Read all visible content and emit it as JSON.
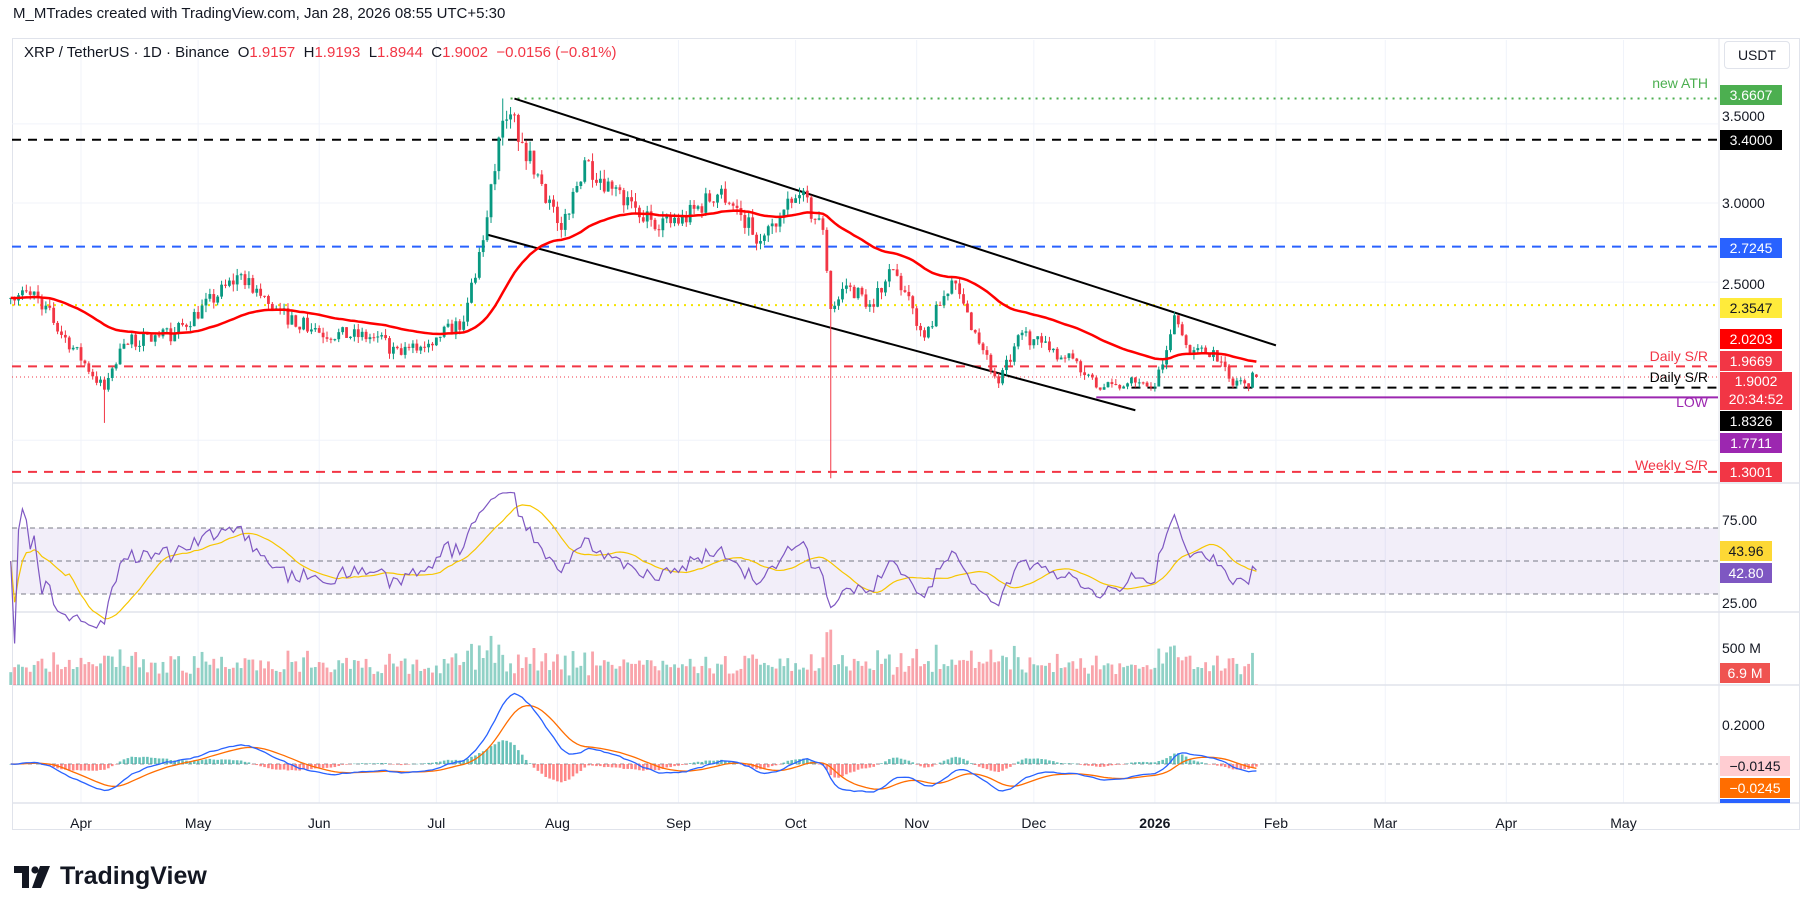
{
  "attribution": "M_MTrades created with TradingView.com, Jan 28, 2026 08:55 UTC+5:30",
  "legend": {
    "symbol": "XRP / TetherUS · 1D · Binance",
    "o_label": "O",
    "o": "1.9157",
    "h_label": "H",
    "h": "1.9193",
    "l_label": "L",
    "l": "1.8944",
    "c_label": "C",
    "c": "1.9002",
    "change": "−0.0156 (−0.81%)"
  },
  "currency_button": "USDT",
  "brand": "TradingView",
  "colors": {
    "up": "#089981",
    "down": "#f23645",
    "ma": "#ff0000",
    "rsi": "#7e57c2",
    "rsi_ma": "#f7c600",
    "macd": "#2962ff",
    "signal": "#ff6d00"
  },
  "price_axis": {
    "ticks": [
      "3.5000",
      "3.0000",
      "2.5000"
    ],
    "labels": {
      "ath": "3.6607",
      "black_top": "3.4000",
      "blue": "2.7245",
      "yellow": "2.3547",
      "ma": "2.0203",
      "daily_sr": "1.9669",
      "last": "1.9002",
      "countdown": "20:34:52",
      "daily_sr2": "1.8326",
      "low": "1.7711",
      "weekly_sr": "1.3001"
    },
    "annotations": {
      "ath": "new ATH",
      "daily_sr": "Daily S/R",
      "daily_sr2": "Daily S/R",
      "low": "LOW",
      "weekly_sr": "Weekly S/R"
    }
  },
  "rsi_axis": {
    "t75": "75.00",
    "t25": "25.00",
    "ma_value": "43.96",
    "rsi_value": "42.80"
  },
  "volume_axis": {
    "t500": "500 M",
    "value": "6.9 M"
  },
  "macd_axis": {
    "t02": "0.2000",
    "hist": "−0.0145",
    "signal": "−0.0245"
  },
  "time_axis": [
    "Apr",
    "May",
    "Jun",
    "Jul",
    "Aug",
    "Sep",
    "Oct",
    "Nov",
    "Dec",
    "2026",
    "Feb",
    "Mar",
    "Apr",
    "May"
  ],
  "chart_data": {
    "type": "candlestick",
    "title": "XRP / TetherUS · 1D · Binance",
    "start_date": "2025-03-14",
    "end_date": "2026-01-27",
    "close_keypoints": [
      [
        "2025-03-14",
        2.4
      ],
      [
        "2025-03-20",
        2.44
      ],
      [
        "2025-03-28",
        2.15
      ],
      [
        "2025-04-07",
        1.82
      ],
      [
        "2025-04-12",
        2.11
      ],
      [
        "2025-04-25",
        2.18
      ],
      [
        "2025-05-12",
        2.55
      ],
      [
        "2025-05-20",
        2.33
      ],
      [
        "2025-06-01",
        2.18
      ],
      [
        "2025-06-15",
        2.15
      ],
      [
        "2025-06-22",
        2.04
      ],
      [
        "2025-07-01",
        2.15
      ],
      [
        "2025-07-08",
        2.25
      ],
      [
        "2025-07-12",
        2.69
      ],
      [
        "2025-07-14",
        2.91
      ],
      [
        "2025-07-18",
        3.52
      ],
      [
        "2025-07-20",
        3.56
      ],
      [
        "2025-07-23",
        3.38
      ],
      [
        "2025-07-28",
        3.12
      ],
      [
        "2025-08-02",
        2.83
      ],
      [
        "2025-08-08",
        3.27
      ],
      [
        "2025-08-15",
        3.09
      ],
      [
        "2025-08-22",
        2.91
      ],
      [
        "2025-09-01",
        2.87
      ],
      [
        "2025-09-12",
        3.09
      ],
      [
        "2025-09-22",
        2.76
      ],
      [
        "2025-10-02",
        3.05
      ],
      [
        "2025-10-08",
        2.83
      ],
      [
        "2025-10-10",
        2.33
      ],
      [
        "2025-10-15",
        2.47
      ],
      [
        "2025-10-20",
        2.36
      ],
      [
        "2025-10-26",
        2.58
      ],
      [
        "2025-11-03",
        2.15
      ],
      [
        "2025-11-10",
        2.51
      ],
      [
        "2025-11-18",
        2.07
      ],
      [
        "2025-11-22",
        1.86
      ],
      [
        "2025-11-28",
        2.18
      ],
      [
        "2025-12-05",
        2.07
      ],
      [
        "2025-12-12",
        2.0
      ],
      [
        "2025-12-18",
        1.82
      ],
      [
        "2025-12-25",
        1.86
      ],
      [
        "2026-01-01",
        1.84
      ],
      [
        "2026-01-04",
        2.07
      ],
      [
        "2026-01-06",
        2.29
      ],
      [
        "2026-01-10",
        2.04
      ],
      [
        "2026-01-16",
        2.07
      ],
      [
        "2026-01-20",
        1.89
      ],
      [
        "2026-01-24",
        1.86
      ],
      [
        "2026-01-27",
        1.9002
      ]
    ],
    "extreme_wicks": [
      [
        "2025-04-07",
        1.61
      ],
      [
        "2025-10-10",
        1.26
      ],
      [
        "2025-07-18",
        3.6607
      ]
    ],
    "last_candle": {
      "o": 1.9157,
      "h": 1.9193,
      "l": 1.8944,
      "c": 1.9002
    },
    "moving_average": {
      "type": "EMA",
      "period": 50,
      "last": 2.0203
    },
    "horizontal_levels": [
      {
        "price": 3.6607,
        "style": "dotted",
        "color": "#4caf50",
        "from": "2025-07-20",
        "label": "new ATH"
      },
      {
        "price": 3.4,
        "style": "dashed",
        "color": "#000000"
      },
      {
        "price": 2.7245,
        "style": "dashed",
        "color": "#2962ff"
      },
      {
        "price": 2.3547,
        "style": "dotted",
        "color": "#f5e400"
      },
      {
        "price": 1.9669,
        "style": "dashed",
        "color": "#f23645",
        "label": "Daily S/R"
      },
      {
        "price": 1.9002,
        "style": "dotted-thin",
        "color": "#f23645"
      },
      {
        "price": 1.8326,
        "style": "dashed",
        "color": "#000000",
        "from": "2025-12-26",
        "label": "Daily S/R"
      },
      {
        "price": 1.7711,
        "style": "solid",
        "color": "#9c27b0",
        "from": "2025-12-17",
        "label": "LOW"
      },
      {
        "price": 1.3001,
        "style": "dashed",
        "color": "#f23645",
        "label": "Weekly S/R"
      }
    ],
    "trendlines": [
      {
        "name": "channel-upper",
        "from": [
          "2025-07-21",
          3.66
        ],
        "to": [
          "2026-02-01",
          2.1
        ]
      },
      {
        "name": "channel-lower",
        "from": [
          "2025-07-14",
          2.8
        ],
        "to": [
          "2025-12-27",
          1.69
        ]
      }
    ],
    "indicators": {
      "rsi": {
        "period": 14,
        "last": 42.8,
        "ma_last": 43.96,
        "bands": [
          70,
          50,
          30
        ],
        "ticks": [
          75,
          25
        ]
      },
      "volume": {
        "last_millions": 6.9,
        "ticks_millions": [
          500
        ]
      },
      "macd": {
        "fast": 12,
        "slow": 26,
        "signal": 9,
        "hist_last": -0.0145,
        "signal_last": -0.0245,
        "ticks": [
          0.2
        ]
      }
    },
    "yrange_price": [
      1.2,
      3.9
    ]
  }
}
